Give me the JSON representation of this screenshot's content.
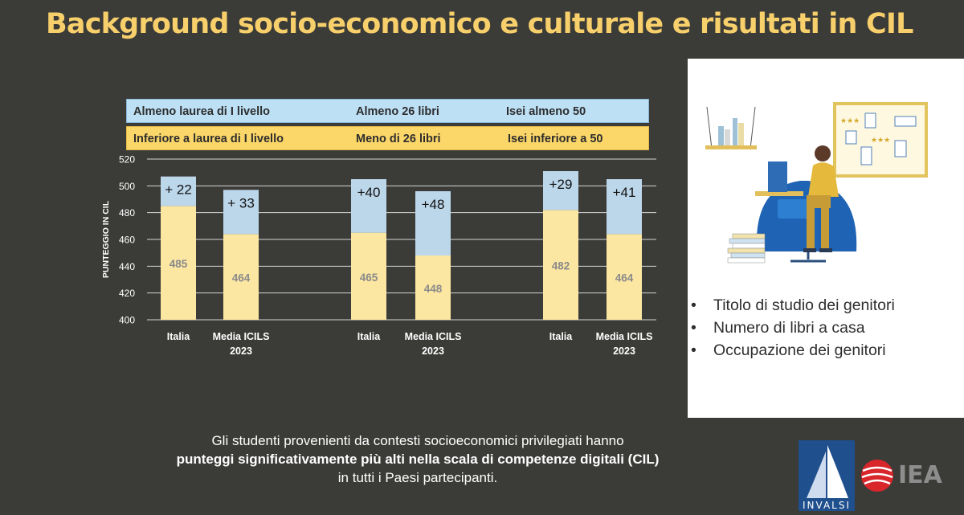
{
  "slide": {
    "title": "Background socio-economico e culturale e risultati in CIL"
  },
  "legend_bands": {
    "upper": [
      "Almeno laurea di I livello",
      "Almeno 26 libri",
      "Isei almeno 50"
    ],
    "lower": [
      "Inferiore a laurea di I livello",
      "Meno di 26 libri",
      "Isei inferiore a 50"
    ]
  },
  "chart_data": {
    "type": "bar",
    "stacked": true,
    "ylabel": "PUNTEGGIO IN CIL",
    "ylim": [
      400,
      520
    ],
    "yticks": [
      400,
      420,
      440,
      460,
      480,
      500,
      520
    ],
    "grid": true,
    "groups": [
      {
        "categories": [
          "Italia",
          "Media ICILS 2023"
        ],
        "base": [
          485,
          464
        ],
        "gap": [
          22,
          33
        ],
        "gap_labels": [
          "+ 22",
          "+ 33"
        ]
      },
      {
        "categories": [
          "Italia",
          "Media ICILS 2023"
        ],
        "base": [
          465,
          448
        ],
        "gap": [
          40,
          48
        ],
        "gap_labels": [
          "+40",
          "+48"
        ]
      },
      {
        "categories": [
          "Italia",
          "Media ICILS 2023"
        ],
        "base": [
          482,
          464
        ],
        "gap": [
          29,
          41
        ],
        "gap_labels": [
          "+29",
          "+41"
        ]
      }
    ],
    "series": [
      {
        "name": "Inferiore a laurea di I livello / Meno di 26 libri / Isei inferiore a 50",
        "color": "#fbe6a2"
      },
      {
        "name": "Almeno laurea di I livello / Almeno 26 libri / Isei almeno 50",
        "color": "#bcd6ea"
      }
    ]
  },
  "sidebar": {
    "items": [
      "Titolo di studio dei genitori",
      "Numero di libri a casa",
      "Occupazione dei genitori"
    ],
    "bullet": "•",
    "illustration": "person-studying-at-desk-illustration"
  },
  "conclusion": {
    "line1": "Gli studenti provenienti da contesti socioeconomici privilegiati hanno",
    "line2": "punteggi significativamente più alti nella scala di competenze digitali (CIL)",
    "line3": "in tutti i Paesi partecipanti."
  },
  "logos": {
    "invalsi": "INVALSI",
    "iea": "IEA"
  },
  "colors": {
    "background": "#3b3b38",
    "title": "#f7cf6b",
    "bar_base": "#fbe6a2",
    "bar_gap": "#bcd6ea",
    "band_upper": "#bde0f5",
    "band_lower": "#fbd668"
  }
}
